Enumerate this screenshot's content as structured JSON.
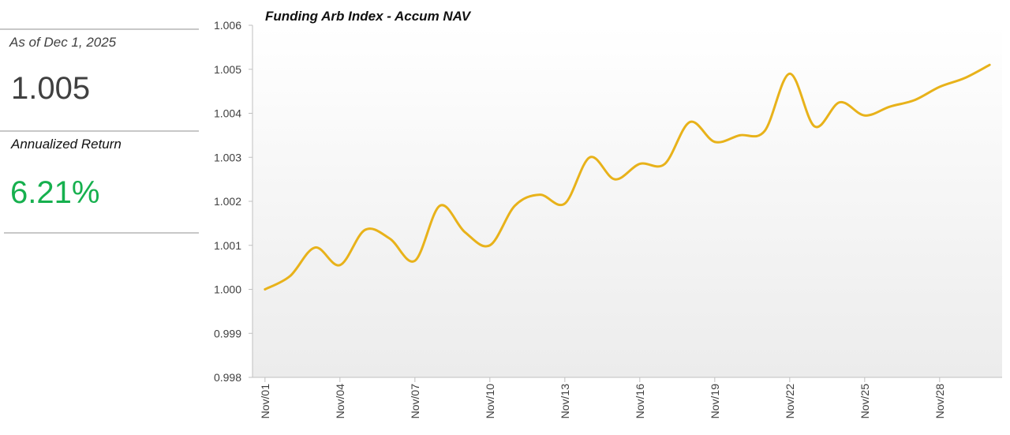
{
  "stats": {
    "as_of_label": "As of Dec 1, 2025",
    "nav_value": "1.005",
    "return_label": "Annualized Return",
    "return_value": "6.21%"
  },
  "colors": {
    "line": "#e8b21a",
    "positive": "#16b04e",
    "axis": "#bfbfbf",
    "text": "#404040"
  },
  "chart_data": {
    "type": "line",
    "title": "Funding Arb Index - Accum NAV",
    "xlabel": "",
    "ylabel": "",
    "ylim": [
      0.998,
      1.006
    ],
    "yticks": [
      0.998,
      0.999,
      1.0,
      1.001,
      1.002,
      1.003,
      1.004,
      1.005,
      1.006
    ],
    "ytick_labels": [
      "0.998",
      "0.999",
      "1.000",
      "1.001",
      "1.002",
      "1.003",
      "1.004",
      "1.005",
      "1.006"
    ],
    "categories": [
      "Nov/01",
      "Nov/02",
      "Nov/03",
      "Nov/04",
      "Nov/05",
      "Nov/06",
      "Nov/07",
      "Nov/08",
      "Nov/09",
      "Nov/10",
      "Nov/11",
      "Nov/12",
      "Nov/13",
      "Nov/14",
      "Nov/15",
      "Nov/16",
      "Nov/17",
      "Nov/18",
      "Nov/19",
      "Nov/20",
      "Nov/21",
      "Nov/22",
      "Nov/23",
      "Nov/24",
      "Nov/25",
      "Nov/26",
      "Nov/27",
      "Nov/28",
      "Nov/29",
      "Nov/30"
    ],
    "tick_labels_shown": [
      "Nov/01",
      "Nov/04",
      "Nov/07",
      "Nov/10",
      "Nov/13",
      "Nov/16",
      "Nov/19",
      "Nov/22",
      "Nov/25",
      "Nov/28"
    ],
    "series": [
      {
        "name": "Accum NAV",
        "values": [
          1.0,
          1.0003,
          1.00095,
          1.00055,
          1.00135,
          1.00115,
          1.00065,
          1.0019,
          1.0013,
          1.001,
          1.0019,
          1.00215,
          1.00195,
          1.003,
          1.0025,
          1.00285,
          1.00285,
          1.0038,
          1.00335,
          1.0035,
          1.0036,
          1.0049,
          1.0037,
          1.00425,
          1.00395,
          1.00415,
          1.0043,
          1.0046,
          1.0048,
          1.0051
        ]
      }
    ]
  }
}
